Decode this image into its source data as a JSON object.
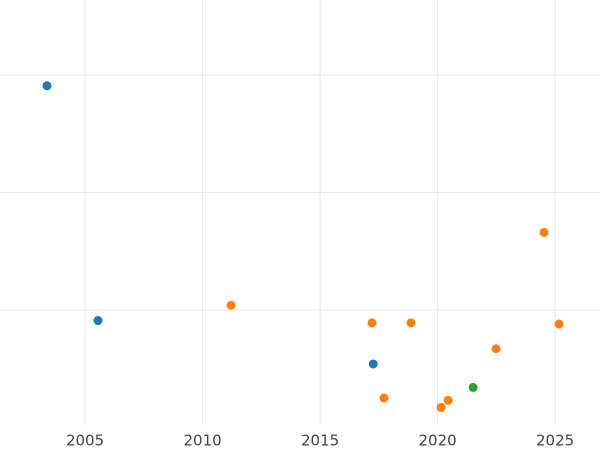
{
  "chart_data": {
    "type": "scatter",
    "xlim": [
      2001.38,
      2026.91
    ],
    "xticks": [
      2005,
      2010,
      2015,
      2020,
      2025
    ],
    "ylim": [
      0.02,
      3.64
    ],
    "yticks": [
      1,
      2,
      3
    ],
    "show_ytick_labels": false,
    "grid": true,
    "series": [
      {
        "color": "#1f77b4",
        "x": [
          2003.38,
          2005.55,
          2017.26
        ],
        "values": [
          2.91,
          0.91,
          0.54
        ]
      },
      {
        "color": "#ff7f0e",
        "x": [
          2011.21,
          2017.21,
          2018.87,
          2024.53,
          2025.17,
          2022.49,
          2017.72,
          2020.15,
          2020.45
        ],
        "values": [
          1.04,
          0.89,
          0.89,
          1.66,
          0.88,
          0.67,
          0.25,
          0.17,
          0.23
        ]
      },
      {
        "color": "#2ca02c",
        "x": [
          2021.51
        ],
        "values": [
          0.34
        ]
      }
    ]
  }
}
